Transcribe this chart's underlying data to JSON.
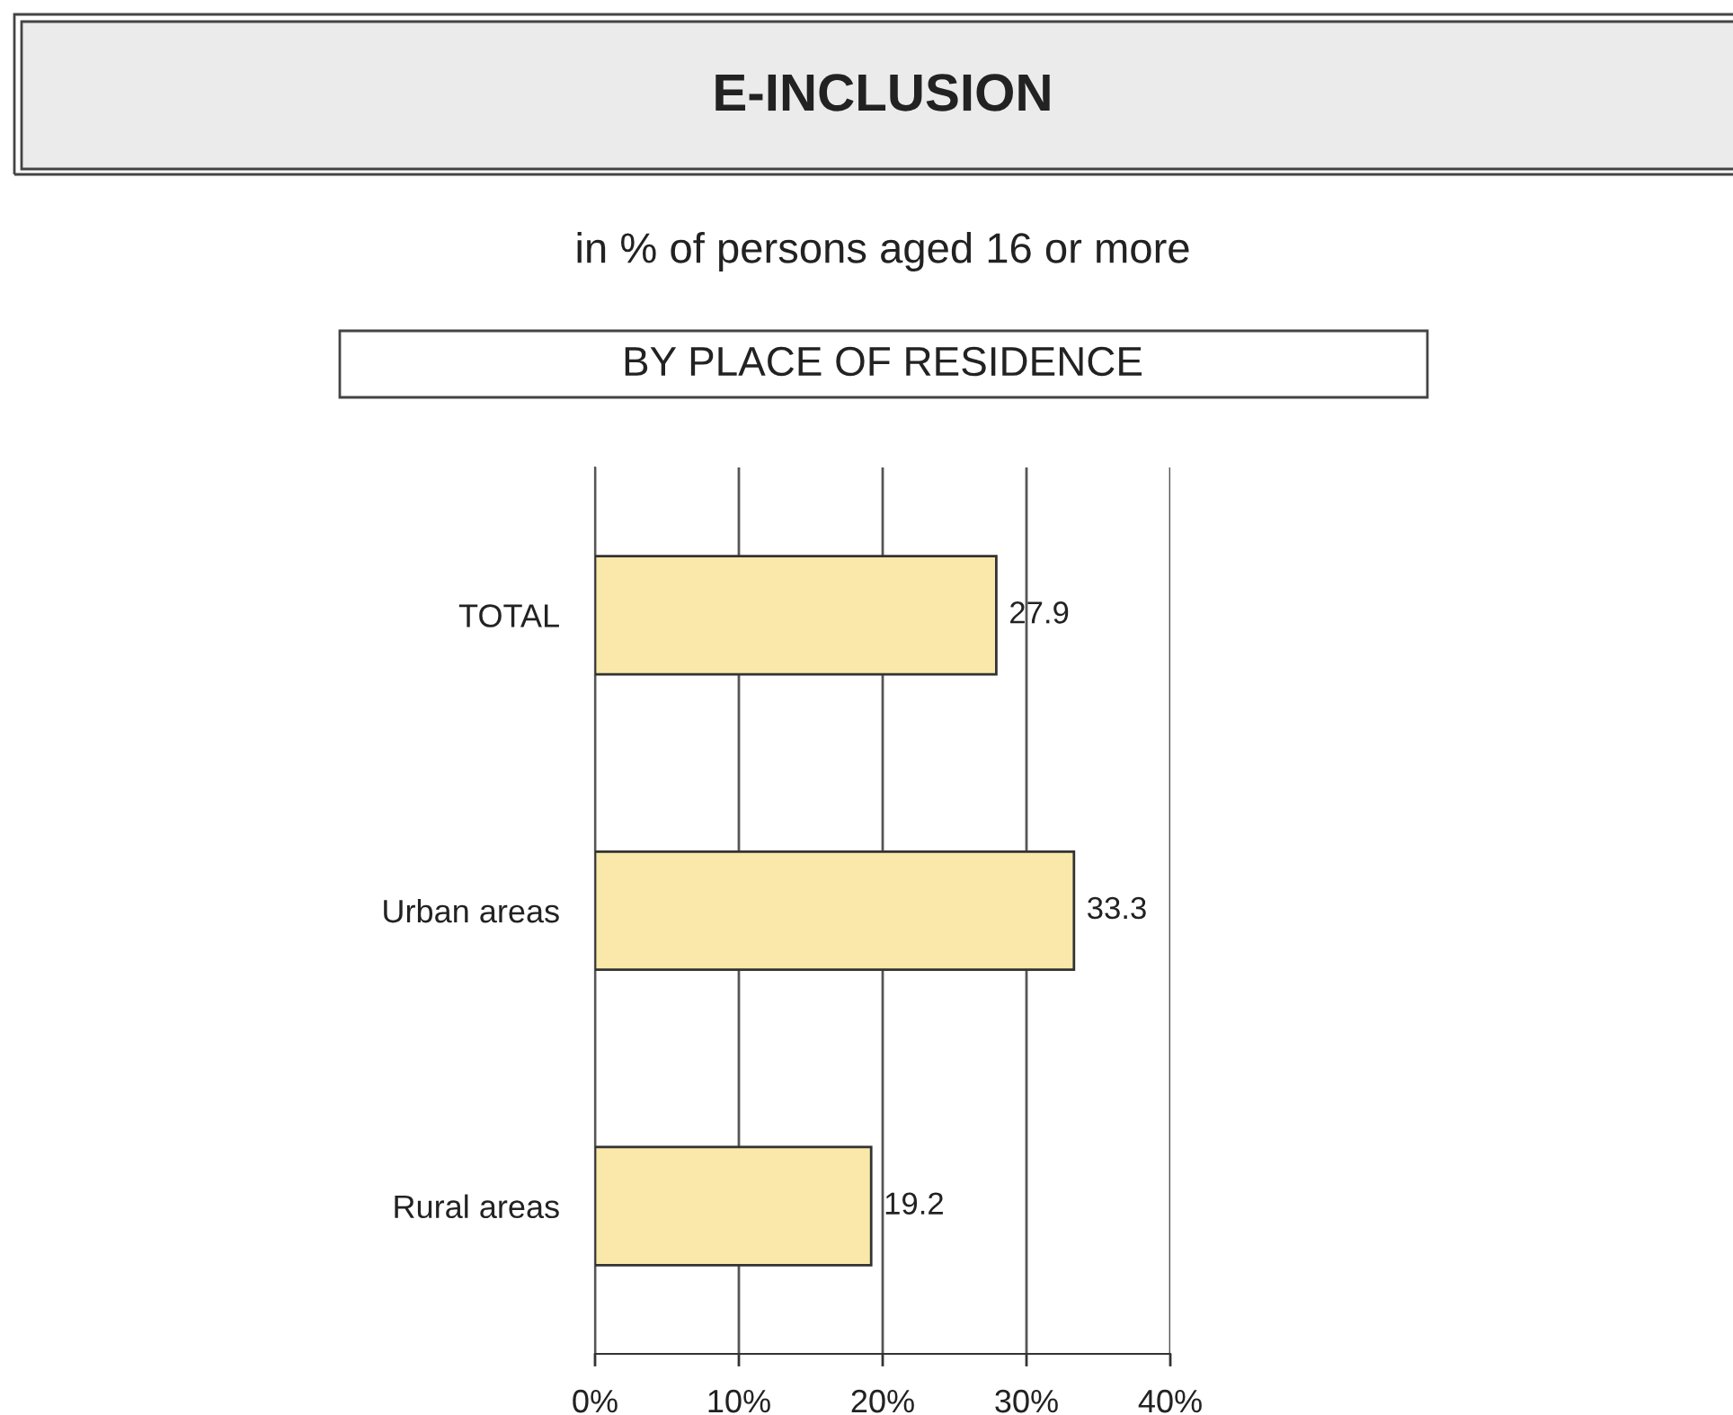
{
  "chart_data": {
    "type": "bar",
    "orientation": "horizontal",
    "title": "E-INCLUSION",
    "subtitle": "in % of persons aged 16 or more",
    "annotations": [
      "BY PLACE OF RESIDENCE"
    ],
    "categories": [
      "TOTAL",
      "Urban areas",
      "Rural areas"
    ],
    "values": [
      27.9,
      33.3,
      19.2
    ],
    "color": "#f9e8a9",
    "data_labels": true,
    "xlim": [
      0,
      40
    ],
    "xticks": [
      {
        "value": 0,
        "label": "0%"
      },
      {
        "value": 10,
        "label": "10%"
      },
      {
        "value": 20,
        "label": "20%"
      },
      {
        "value": 30,
        "label": "30%"
      },
      {
        "value": 40,
        "label": "40%"
      }
    ],
    "grid": "x"
  }
}
